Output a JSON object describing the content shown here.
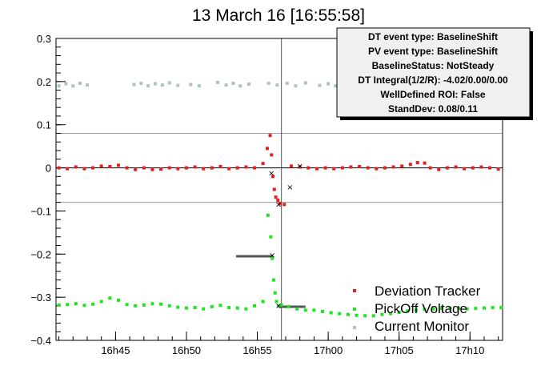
{
  "chart_data": {
    "type": "scatter",
    "title": "13 March 16 [16:55:58]",
    "xlabel": "",
    "ylabel": "",
    "x_unit": "minutes after 16:40",
    "xlim": [
      0.8,
      32.3
    ],
    "ylim": [
      -0.4,
      0.3
    ],
    "y_ticks": [
      {
        "value": 0.3,
        "label": "0.3"
      },
      {
        "value": 0.2,
        "label": "0.2"
      },
      {
        "value": 0.1,
        "label": "0.1"
      },
      {
        "value": 0.0,
        "label": "0"
      },
      {
        "value": -0.1,
        "label": "−0.1"
      },
      {
        "value": -0.2,
        "label": "−0.2"
      },
      {
        "value": -0.3,
        "label": "−0.3"
      },
      {
        "value": -0.4,
        "label": "−0.4"
      }
    ],
    "x_ticks": [
      {
        "value": 5,
        "label": "16h45"
      },
      {
        "value": 10,
        "label": "16h50"
      },
      {
        "value": 15,
        "label": "16h55"
      },
      {
        "value": 20,
        "label": "17h00"
      },
      {
        "value": 25,
        "label": "17h05"
      },
      {
        "value": 30,
        "label": "17h10"
      }
    ],
    "reference_lines": {
      "horizontal": [
        0.08,
        0.0,
        -0.08
      ],
      "vertical": 16.7
    },
    "stats_box": [
      "DT event type: BaselineShift",
      "PV event type: BaselineShift",
      "BaselineStatus: NotSteady",
      "DT Integral(1/2/R): -4.02/0.00/0.00",
      "WellDefined ROI: False",
      "StandDev: 0.08/0.11"
    ],
    "legend": [
      {
        "name": "Deviation Tracker",
        "color": "#e81e1e"
      },
      {
        "name": "PickOff Voltage",
        "color": "#1ee61e"
      },
      {
        "name": "Current Monitor",
        "color": "#a8c8bf"
      }
    ],
    "legend_position": "bottom-right",
    "series": [
      {
        "name": "Deviation Tracker",
        "color": "#e81e1e",
        "x": [
          1.0,
          1.6,
          2.2,
          2.8,
          3.4,
          4.0,
          4.6,
          5.2,
          5.8,
          6.4,
          7.0,
          7.6,
          8.2,
          8.8,
          9.4,
          10.0,
          10.6,
          11.2,
          11.8,
          12.4,
          13.0,
          13.6,
          14.2,
          14.8,
          15.4,
          15.7,
          15.9,
          16.0,
          16.1,
          16.2,
          16.3,
          16.45,
          16.6,
          16.9,
          17.4,
          18.0,
          18.6,
          19.2,
          19.8,
          20.4,
          21.0,
          21.6,
          22.2,
          22.8,
          23.4,
          24.0,
          24.6,
          25.2,
          25.8,
          26.3,
          26.8,
          27.2,
          27.8,
          28.4,
          29.0,
          29.6,
          30.2,
          30.8,
          31.4,
          32.0
        ],
        "y": [
          0.0,
          -0.002,
          0.002,
          -0.002,
          0.0,
          0.004,
          0.003,
          0.006,
          0.0,
          -0.004,
          0.0,
          -0.004,
          -0.003,
          0.0,
          -0.002,
          0.0,
          0.002,
          -0.002,
          0.0,
          0.003,
          -0.002,
          0.0,
          0.002,
          0.0,
          0.01,
          0.045,
          0.075,
          0.03,
          -0.02,
          -0.05,
          -0.068,
          -0.075,
          -0.083,
          -0.085,
          0.004,
          0.002,
          0.0,
          -0.002,
          0.0,
          -0.002,
          0.0,
          0.002,
          0.003,
          0.0,
          -0.002,
          0.0,
          0.002,
          0.004,
          0.008,
          0.012,
          0.011,
          0.0,
          -0.004,
          0.0,
          0.002,
          -0.002,
          0.0,
          0.002,
          0.0,
          -0.003
        ]
      },
      {
        "name": "PickOff Voltage",
        "color": "#1ee61e",
        "x": [
          1.0,
          1.6,
          2.2,
          2.8,
          3.4,
          4.0,
          4.6,
          5.2,
          5.8,
          6.4,
          7.0,
          7.6,
          8.2,
          8.8,
          9.4,
          10.0,
          10.6,
          11.2,
          11.8,
          12.4,
          13.0,
          13.6,
          14.2,
          14.8,
          15.4,
          15.75,
          15.95,
          16.05,
          16.15,
          16.25,
          16.35,
          16.5,
          16.7,
          17.2,
          17.8,
          18.4,
          19.0,
          19.6,
          20.2,
          20.8,
          21.4,
          22.0,
          22.6,
          23.2,
          23.8,
          24.4,
          25.0,
          25.6,
          26.2,
          26.8,
          27.4,
          28.0,
          28.6,
          29.2,
          29.8,
          30.4,
          31.0,
          31.6,
          32.2
        ],
        "y": [
          -0.318,
          -0.317,
          -0.315,
          -0.319,
          -0.316,
          -0.31,
          -0.302,
          -0.307,
          -0.317,
          -0.32,
          -0.318,
          -0.315,
          -0.316,
          -0.32,
          -0.323,
          -0.325,
          -0.324,
          -0.327,
          -0.322,
          -0.319,
          -0.324,
          -0.325,
          -0.327,
          -0.32,
          -0.31,
          -0.11,
          -0.16,
          -0.21,
          -0.26,
          -0.29,
          -0.31,
          -0.32,
          -0.318,
          -0.322,
          -0.327,
          -0.33,
          -0.33,
          -0.333,
          -0.336,
          -0.338,
          -0.34,
          -0.342,
          -0.343,
          -0.343,
          -0.34,
          -0.338,
          -0.335,
          -0.332,
          -0.33,
          -0.328,
          -0.327,
          -0.326,
          -0.325,
          -0.326,
          -0.327,
          -0.326,
          -0.325,
          -0.324,
          -0.324
        ]
      },
      {
        "name": "Current Monitor",
        "color": "#a8c8bf",
        "x": [
          1.0,
          1.5,
          2.0,
          2.5,
          3.0,
          6.3,
          6.8,
          7.3,
          7.8,
          8.3,
          8.8,
          9.4,
          10.3,
          10.9,
          12.2,
          12.8,
          13.3,
          13.8,
          14.4,
          15.8,
          16.4,
          17.1,
          17.7,
          18.4,
          19.4,
          20.0,
          20.5
        ],
        "y": [
          0.19,
          0.195,
          0.19,
          0.196,
          0.192,
          0.193,
          0.196,
          0.19,
          0.195,
          0.192,
          0.197,
          0.191,
          0.193,
          0.19,
          0.198,
          0.192,
          0.196,
          0.19,
          0.194,
          0.196,
          0.192,
          0.196,
          0.19,
          0.197,
          0.191,
          0.195,
          0.19
        ]
      },
      {
        "name": "Event markers",
        "color": "#000000",
        "x": [
          16.0,
          16.5,
          17.3,
          18.0,
          16.05,
          16.5
        ],
        "y": [
          -0.013,
          -0.085,
          -0.045,
          0.004,
          -0.203,
          -0.32
        ]
      }
    ],
    "segments": [
      {
        "x": [
          13.5,
          16.1
        ],
        "y": -0.205,
        "color": "#555555"
      },
      {
        "x": [
          16.5,
          18.4
        ],
        "y": -0.322,
        "color": "#555555"
      }
    ]
  }
}
